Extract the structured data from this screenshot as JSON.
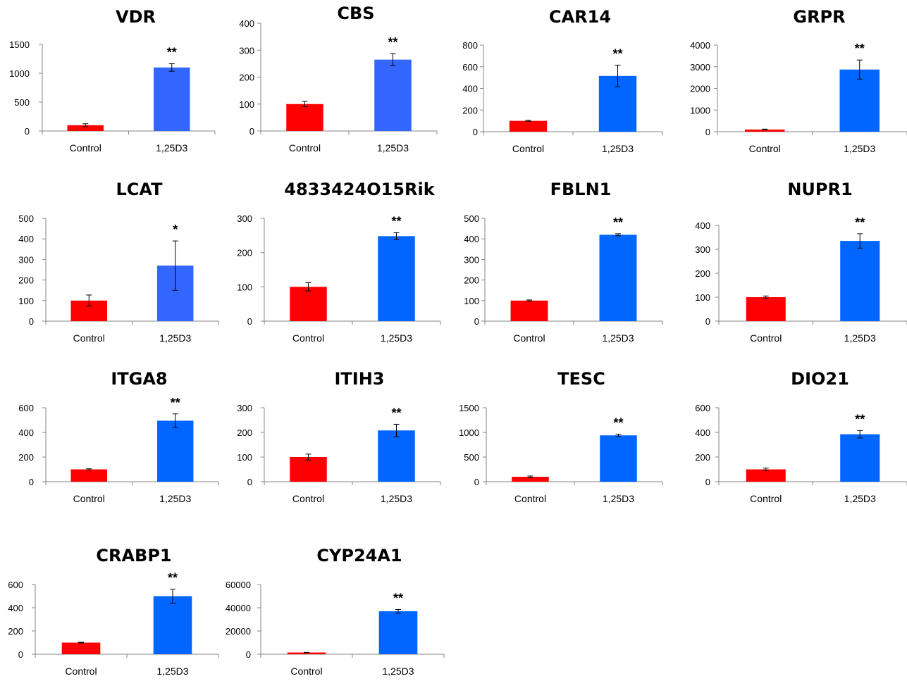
{
  "colors": {
    "control": "#ff0000",
    "treated_default": "#0066ff",
    "treated_light": "#3366ff",
    "axis": "#868686",
    "text": "#000000"
  },
  "chart_data": [
    {
      "type": "bar",
      "title": "VDR",
      "categories": [
        "Control",
        "1,25D3"
      ],
      "values": [
        100,
        1100
      ],
      "errors": [
        25,
        65
      ],
      "significance": "**",
      "yticks": [
        "0",
        "500",
        "1000",
        "1500"
      ],
      "ylim": [
        0,
        1500
      ],
      "treated_color": "#3366ff"
    },
    {
      "type": "bar",
      "title": "CBS",
      "categories": [
        "Control",
        "1,25D3"
      ],
      "values": [
        100,
        265
      ],
      "errors": [
        10,
        22
      ],
      "significance": "**",
      "yticks": [
        "0",
        "100",
        "200",
        "300",
        "400"
      ],
      "ylim": [
        0,
        400
      ],
      "treated_color": "#3366ff"
    },
    {
      "type": "bar",
      "title": "CAR14",
      "categories": [
        "Control",
        "1,25D3"
      ],
      "values": [
        100,
        515
      ],
      "errors": [
        5,
        100
      ],
      "significance": "**",
      "yticks": [
        "0",
        "200",
        "400",
        "600",
        "800"
      ],
      "ylim": [
        0,
        800
      ],
      "treated_color": "#0066ff"
    },
    {
      "type": "bar",
      "title": "GRPR",
      "categories": [
        "Control",
        "1,25D3"
      ],
      "values": [
        100,
        2870
      ],
      "errors": [
        20,
        440
      ],
      "significance": "**",
      "yticks": [
        "0",
        "1000",
        "2000",
        "3000",
        "4000"
      ],
      "ylim": [
        0,
        4000
      ],
      "treated_color": "#0066ff"
    },
    {
      "type": "bar",
      "title": "LCAT",
      "categories": [
        "Control",
        "1,25D3"
      ],
      "values": [
        100,
        270
      ],
      "errors": [
        27,
        120
      ],
      "significance": "*",
      "yticks": [
        "0",
        "100",
        "200",
        "300",
        "400",
        "500"
      ],
      "ylim": [
        0,
        500
      ],
      "treated_color": "#3366ff"
    },
    {
      "type": "bar",
      "title": "4833424O15Rik",
      "categories": [
        "Control",
        "1,25D3"
      ],
      "values": [
        100,
        248
      ],
      "errors": [
        12,
        10
      ],
      "significance": "**",
      "yticks": [
        "0",
        "100",
        "200",
        "300"
      ],
      "ylim": [
        0,
        300
      ],
      "treated_color": "#0066ff"
    },
    {
      "type": "bar",
      "title": "FBLN1",
      "categories": [
        "Control",
        "1,25D3"
      ],
      "values": [
        100,
        420
      ],
      "errors": [
        3,
        5
      ],
      "significance": "**",
      "yticks": [
        "0",
        "100",
        "200",
        "300",
        "400",
        "500"
      ],
      "ylim": [
        0,
        500
      ],
      "treated_color": "#0066ff"
    },
    {
      "type": "bar",
      "title": "NUPR1",
      "categories": [
        "Control",
        "1,25D3"
      ],
      "values": [
        100,
        335
      ],
      "errors": [
        5,
        30
      ],
      "significance": "**",
      "yticks": [
        "0",
        "100",
        "200",
        "300",
        "400"
      ],
      "ylim": [
        0,
        400
      ],
      "treated_color": "#0066ff"
    },
    {
      "type": "bar",
      "title": "ITGA8",
      "categories": [
        "Control",
        "1,25D3"
      ],
      "values": [
        100,
        495
      ],
      "errors": [
        5,
        55
      ],
      "significance": "**",
      "yticks": [
        "0",
        "200",
        "400",
        "600"
      ],
      "ylim": [
        0,
        600
      ],
      "treated_color": "#0066ff"
    },
    {
      "type": "bar",
      "title": "ITIH3",
      "categories": [
        "Control",
        "1,25D3"
      ],
      "values": [
        100,
        208
      ],
      "errors": [
        12,
        25
      ],
      "significance": "**",
      "yticks": [
        "0",
        "100",
        "200",
        "300"
      ],
      "ylim": [
        0,
        300
      ],
      "treated_color": "#0066ff"
    },
    {
      "type": "bar",
      "title": "TESC",
      "categories": [
        "Control",
        "1,25D3"
      ],
      "values": [
        100,
        940
      ],
      "errors": [
        15,
        25
      ],
      "significance": "**",
      "yticks": [
        "0",
        "500",
        "1000",
        "1500"
      ],
      "ylim": [
        0,
        1500
      ],
      "treated_color": "#0066ff"
    },
    {
      "type": "bar",
      "title": "DIO21",
      "categories": [
        "Control",
        "1,25D3"
      ],
      "values": [
        100,
        385
      ],
      "errors": [
        10,
        30
      ],
      "significance": "**",
      "yticks": [
        "0",
        "200",
        "400",
        "600"
      ],
      "ylim": [
        0,
        600
      ],
      "treated_color": "#0066ff"
    },
    {
      "type": "bar",
      "title": "CRABP1",
      "categories": [
        "Control",
        "1,25D3"
      ],
      "values": [
        100,
        500
      ],
      "errors": [
        3,
        60
      ],
      "significance": "**",
      "yticks": [
        "0",
        "200",
        "400",
        "600"
      ],
      "ylim": [
        0,
        600
      ],
      "treated_color": "#0066ff"
    },
    {
      "type": "bar",
      "title": "CYP24A1",
      "categories": [
        "Control",
        "1,25D3"
      ],
      "values": [
        1500,
        37000
      ],
      "errors": [
        100,
        1500
      ],
      "significance": "**",
      "yticks": [
        "0",
        "20000",
        "40000",
        "60000"
      ],
      "ylim": [
        0,
        60000
      ],
      "treated_color": "#0066ff"
    }
  ]
}
